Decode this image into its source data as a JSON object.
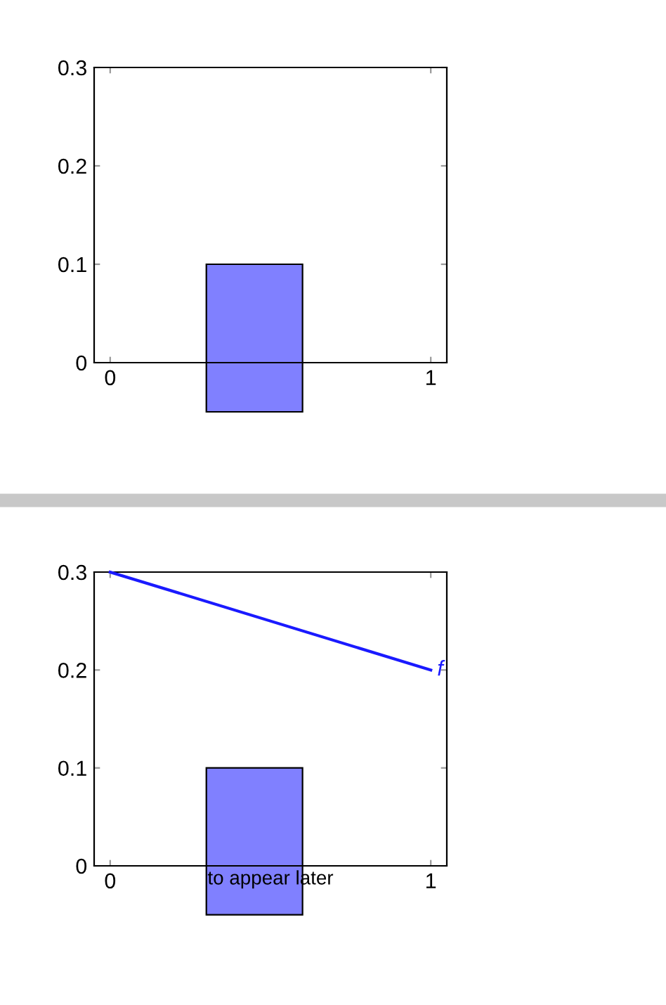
{
  "chart_data": [
    {
      "type": "bar",
      "x": [
        0.45
      ],
      "base": [
        -0.05
      ],
      "values": [
        0.15
      ],
      "color": "#8080ff",
      "xlim": [
        -0.05,
        1.05
      ],
      "ylim": [
        0,
        0.3
      ],
      "xticks": [
        0,
        1
      ],
      "yticks": [
        0,
        0.1,
        0.2,
        0.3
      ],
      "grid": false
    },
    {
      "type": "bar",
      "x": [
        0.45
      ],
      "base": [
        -0.05
      ],
      "values": [
        0.15
      ],
      "color": "#8080ff",
      "xlim": [
        -0.05,
        1.05
      ],
      "ylim": [
        0,
        0.3
      ],
      "xticks": [
        0,
        1
      ],
      "yticks": [
        0,
        0.1,
        0.2,
        0.3
      ],
      "grid": false,
      "series": [
        {
          "type": "line",
          "name": "f",
          "color": "#1a1aff",
          "x": [
            0,
            1
          ],
          "values": [
            0.3,
            0.2
          ]
        }
      ],
      "annotations": [
        "to appear later"
      ]
    }
  ]
}
